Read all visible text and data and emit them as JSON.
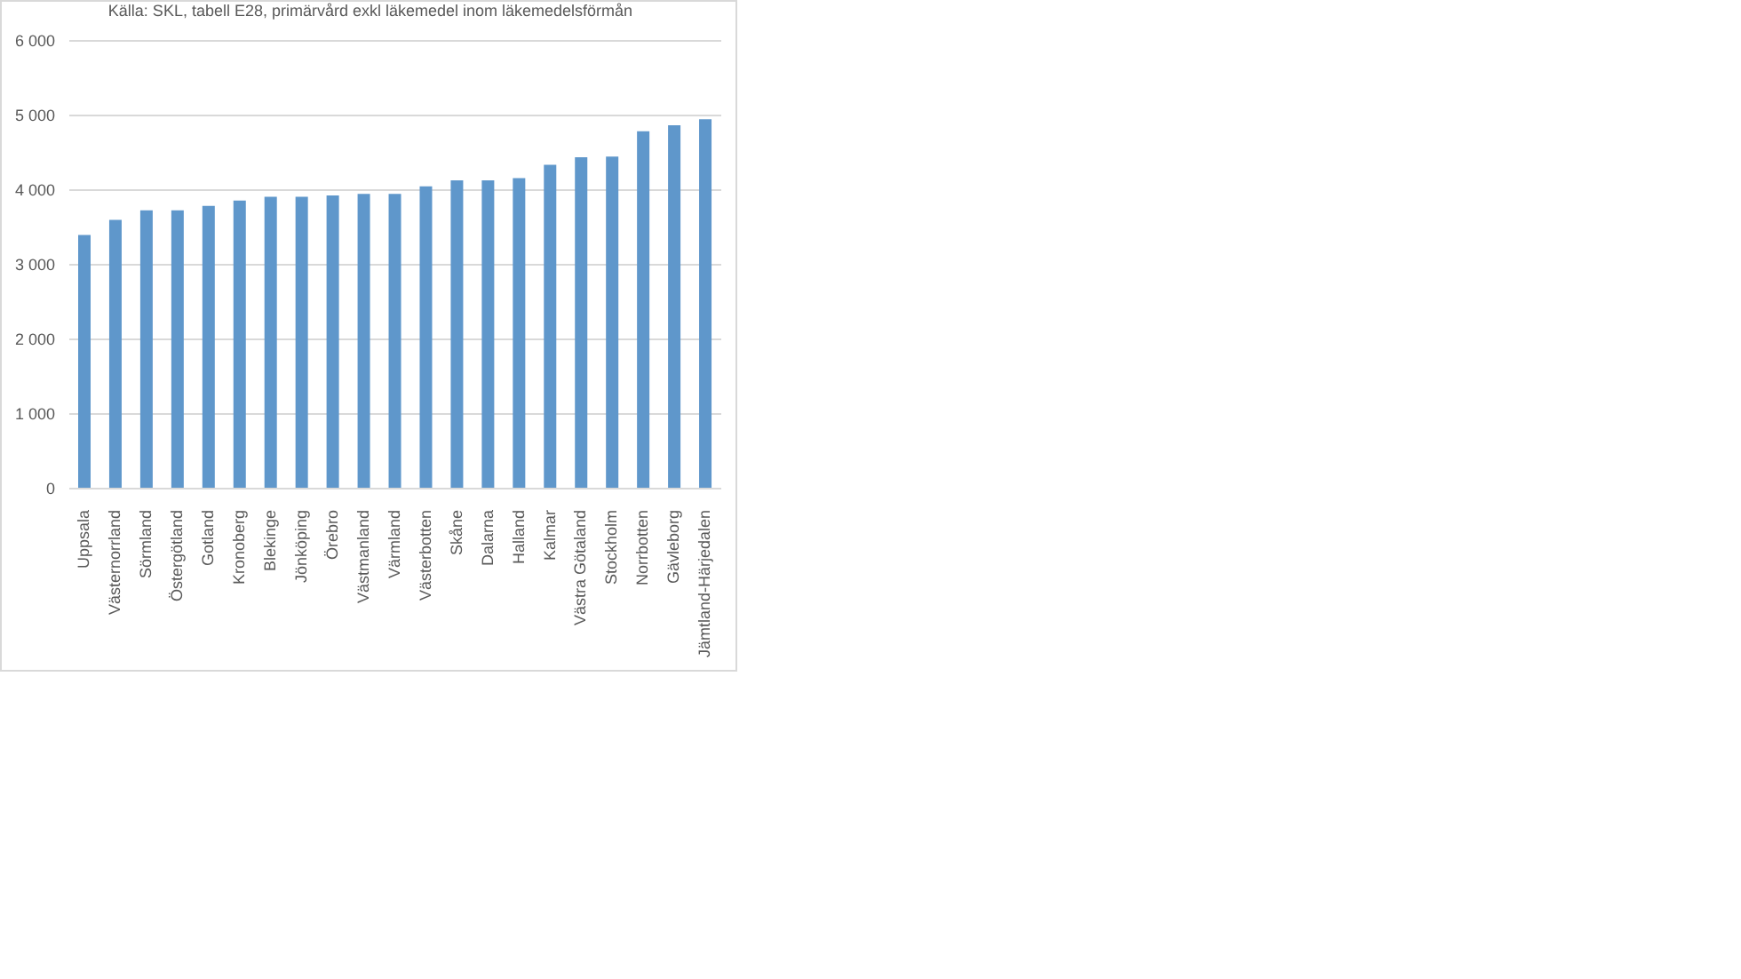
{
  "chart_data": {
    "type": "bar",
    "annotations": [
      "Källa: SKL, tabell E28, primärvård exkl läkemedel inom läkemedelsförmån"
    ],
    "categories": [
      "Uppsala",
      "Västernorrland",
      "Sörmland",
      "Östergötland",
      "Gotland",
      "Kronoberg",
      "Blekinge",
      "Jönköping",
      "Örebro",
      "Västmanland",
      "Värmland",
      "Västerbotten",
      "Skåne",
      "Dalarna",
      "Halland",
      "Kalmar",
      "Västra Götaland",
      "Stockholm",
      "Norrbotten",
      "Gävleborg",
      "Jämtland-Härjedalen"
    ],
    "values": [
      3400,
      3600,
      3730,
      3730,
      3790,
      3860,
      3910,
      3910,
      3930,
      3950,
      3950,
      4050,
      4130,
      4130,
      4160,
      4340,
      4440,
      4450,
      4790,
      4870,
      4950
    ],
    "color": "#5f97cb",
    "ylim": [
      0,
      6000
    ],
    "yticks": [
      {
        "value": 0,
        "label": "0"
      },
      {
        "value": 1000,
        "label": "1 000"
      },
      {
        "value": 2000,
        "label": "2 000"
      },
      {
        "value": 3000,
        "label": "3 000"
      },
      {
        "value": 4000,
        "label": "4 000"
      },
      {
        "value": 5000,
        "label": "5 000"
      },
      {
        "value": 6000,
        "label": "6 000"
      }
    ],
    "grid": "y"
  }
}
